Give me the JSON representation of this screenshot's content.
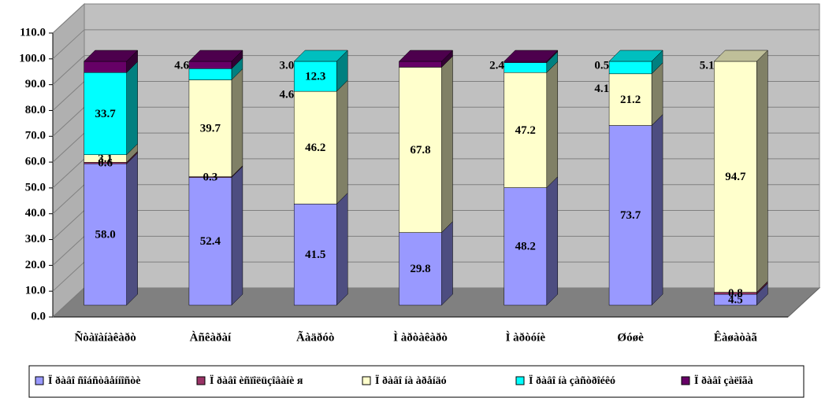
{
  "chart_data": {
    "type": "bar3d-stacked",
    "categories": [
      "Ñòàïàíàêàðò",
      "Àñêàðàí",
      "Ãàäðóò",
      "Ì àðòàêàðò",
      "Ì àðòóíè",
      "Øóøè",
      "Êàøàòàã"
    ],
    "series": [
      {
        "name": "Ï ðàâî ñîáñòâåííîñòè",
        "color": "#9999ff",
        "values": [
          58,
          52.4,
          41.5,
          29.8,
          48.2,
          73.7,
          4.5
        ],
        "value_labels": [
          "58.0",
          "52.4",
          "41.5",
          "29.8",
          "48.2",
          "73.7",
          "4.5"
        ]
      },
      {
        "name": "Ï ðàâî èñïîëüçîâàíè я",
        "color": "#993366",
        "values": [
          0.6,
          0.3,
          null,
          null,
          null,
          null,
          0.8
        ],
        "value_labels": [
          "0.6",
          "0.3",
          null,
          null,
          null,
          null,
          "0.8"
        ]
      },
      {
        "name": "Ï ðàâî íà àðåíäó",
        "color": "#ffffcc",
        "values": [
          3.1,
          39.7,
          46.2,
          67.8,
          47.2,
          21.2,
          94.7
        ],
        "value_labels": [
          "3.1",
          "39.7",
          "46.2",
          "67.8",
          "47.2",
          "21.2",
          "94.7"
        ]
      },
      {
        "name": "Ï ðàâî íà çàñòðîéêó",
        "color": "#00ffff",
        "values": [
          33.7,
          4.6,
          12.3,
          null,
          4.1,
          5.1,
          null
        ],
        "value_labels": [
          "33.7",
          "4.6",
          "12.3",
          null,
          "4.1",
          "5.1",
          null
        ]
      },
      {
        "name": "Ï ðàâî çàëîãà",
        "color": "#660066",
        "values": [
          4.6,
          3,
          null,
          2.4,
          0.5,
          null,
          null
        ],
        "value_labels": [
          "4.6",
          "3.0",
          null,
          "2.4",
          "0.5",
          null,
          null
        ]
      }
    ],
    "ylim": [
      0,
      110
    ],
    "yticks": [
      {
        "value": 0,
        "label": "0.0"
      },
      {
        "value": 10,
        "label": "10.0"
      },
      {
        "value": 20,
        "label": "20.0"
      },
      {
        "value": 30,
        "label": "30.0"
      },
      {
        "value": 40,
        "label": "40.0"
      },
      {
        "value": 50,
        "label": "50.0"
      },
      {
        "value": 60,
        "label": "60.0"
      },
      {
        "value": 70,
        "label": "70.0"
      },
      {
        "value": 80,
        "label": "80.0"
      },
      {
        "value": 90,
        "label": "90.0"
      },
      {
        "value": 100,
        "label": "100.0"
      },
      {
        "value": 110,
        "label": "110.0"
      }
    ],
    "grid": true,
    "legend": "bottom"
  }
}
